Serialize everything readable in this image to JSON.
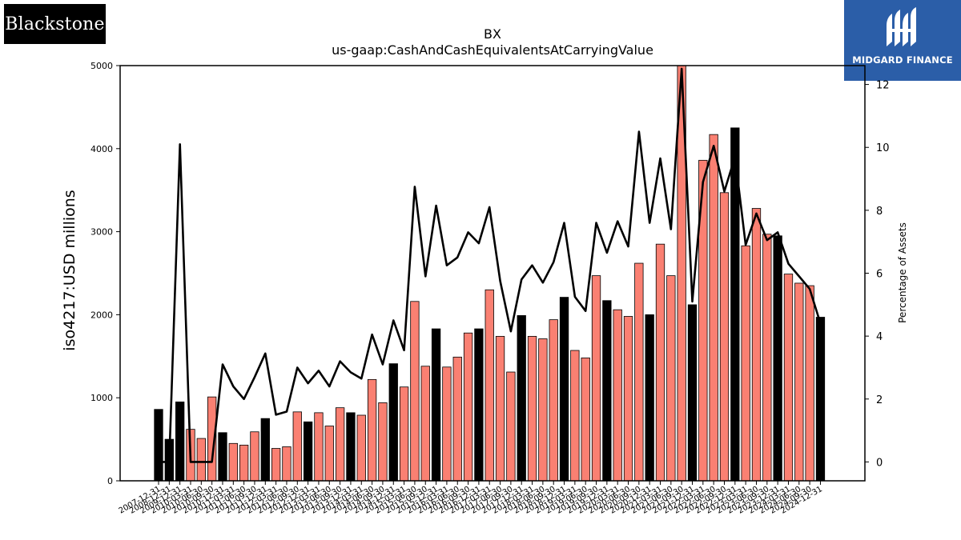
{
  "logos": {
    "left_text": "Blackstone",
    "right_text": "MIDGARD FINANCE"
  },
  "colors": {
    "bar_default": "#fa8072",
    "bar_highlight": "#000000",
    "line": "#000000",
    "logo_right_bg": "#2b5ea8"
  },
  "chart_data": {
    "type": "bar",
    "title": "BX",
    "subtitle": "us-gaap:CashAndCashEquivalentsAtCarryingValue",
    "ylabel": "iso4217:USD  millions",
    "y2label": "Percentage of Assets",
    "ylim": [
      0,
      5000
    ],
    "y2lim": [
      -0.6,
      12.6
    ],
    "yticks": [
      0,
      1000,
      2000,
      3000,
      4000,
      5000
    ],
    "y2ticks": [
      0,
      2,
      4,
      6,
      8,
      10,
      12
    ],
    "grid": false,
    "categories": [
      "2007-12-31",
      "2008-12-31",
      "2009-12-31",
      "2010-03-31",
      "2010-06-30",
      "2010-09-30",
      "2010-12-31",
      "2011-03-31",
      "2011-06-30",
      "2011-09-30",
      "2011-12-31",
      "2012-03-31",
      "2012-06-30",
      "2012-09-30",
      "2012-12-31",
      "2013-03-31",
      "2013-06-30",
      "2013-09-30",
      "2013-12-31",
      "2014-03-31",
      "2014-06-30",
      "2014-09-30",
      "2014-12-31",
      "2015-03-31",
      "2015-06-30",
      "2015-09-30",
      "2015-12-31",
      "2016-03-31",
      "2016-06-30",
      "2016-09-30",
      "2016-12-31",
      "2017-03-31",
      "2017-06-30",
      "2017-09-30",
      "2017-12-31",
      "2018-03-31",
      "2018-06-30",
      "2018-09-30",
      "2018-12-31",
      "2019-03-31",
      "2019-06-30",
      "2019-09-30",
      "2019-12-31",
      "2020-03-31",
      "2020-06-30",
      "2020-09-30",
      "2020-12-31",
      "2021-03-31",
      "2021-06-30",
      "2021-09-30",
      "2021-12-31",
      "2022-03-31",
      "2022-06-30",
      "2022-09-30",
      "2022-12-31",
      "2023-03-31",
      "2023-06-30",
      "2023-09-30",
      "2023-12-31",
      "2024-03-31",
      "2024-06-30",
      "2024-09-30",
      "2024-12-31"
    ],
    "series": [
      {
        "kind": "bar",
        "values": [
          860,
          500,
          950,
          620,
          510,
          1010,
          580,
          450,
          430,
          590,
          750,
          390,
          410,
          830,
          710,
          820,
          660,
          880,
          820,
          790,
          1220,
          940,
          1410,
          1130,
          2160,
          1380,
          1830,
          1370,
          1490,
          1780,
          1830,
          2300,
          1740,
          1310,
          1990,
          1740,
          1710,
          1940,
          2210,
          1570,
          1480,
          2470,
          2170,
          2060,
          1980,
          2620,
          2000,
          2850,
          2470,
          5000,
          2120,
          3860,
          4170,
          3470,
          4250,
          2830,
          3280,
          2970,
          2950,
          2490,
          2380,
          2350,
          1970
        ],
        "highlight": [
          true,
          true,
          true,
          false,
          false,
          false,
          true,
          false,
          false,
          false,
          true,
          false,
          false,
          false,
          true,
          false,
          false,
          false,
          true,
          false,
          false,
          false,
          true,
          false,
          false,
          false,
          true,
          false,
          false,
          false,
          true,
          false,
          false,
          false,
          true,
          false,
          false,
          false,
          true,
          false,
          false,
          false,
          true,
          false,
          false,
          false,
          true,
          false,
          false,
          false,
          true,
          false,
          false,
          false,
          true,
          false,
          false,
          false,
          true,
          false,
          false,
          false,
          true
        ]
      },
      {
        "kind": "line",
        "axis": "right",
        "values": [
          0,
          0,
          10.1,
          0,
          0,
          0,
          3.1,
          2.4,
          2.0,
          2.7,
          3.45,
          1.5,
          1.6,
          3.0,
          2.5,
          2.9,
          2.4,
          3.2,
          2.85,
          2.65,
          4.05,
          3.1,
          4.5,
          3.55,
          8.75,
          5.9,
          8.15,
          6.25,
          6.5,
          7.3,
          6.95,
          8.1,
          5.75,
          4.15,
          5.8,
          6.25,
          5.7,
          6.35,
          7.6,
          5.25,
          4.8,
          7.6,
          6.65,
          7.65,
          6.85,
          10.5,
          7.6,
          9.65,
          7.4,
          12.5,
          5.1,
          8.9,
          10.05,
          8.6,
          9.7,
          6.9,
          7.9,
          7.05,
          7.3,
          6.3,
          5.9,
          5.5,
          4.4
        ]
      }
    ]
  }
}
